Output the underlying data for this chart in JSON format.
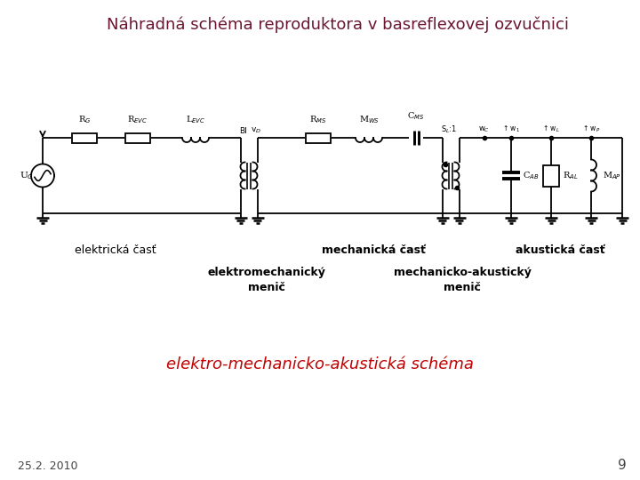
{
  "title": "Náhradná schéma reproduktora v basreflexovej ozvučnici",
  "title_color": "#6B1530",
  "title_fontsize": 13,
  "subtitle": "elektro-mechanicko-akustická schéma",
  "subtitle_color": "#C00000",
  "subtitle_fontsize": 13,
  "label_elektricka": "elektrická časť",
  "label_mechanicka": "mechanická časť",
  "label_akusticka": "akustická časť",
  "label_elektromech": "elektromechanický\nmenič",
  "label_mechanoacust": "mechanicko-akustický\nmenič",
  "date_label": "25.2. 2010",
  "page_label": "9",
  "bg_color": "#FFFFFF",
  "circuit_color": "#000000",
  "line_width": 1.3
}
